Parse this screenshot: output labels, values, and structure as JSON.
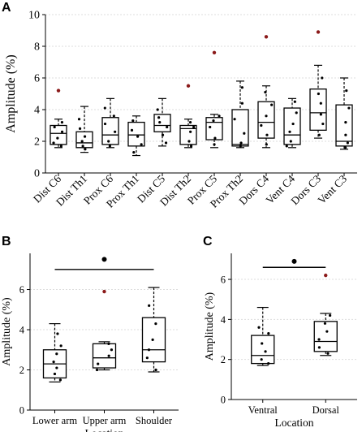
{
  "chart_data": [
    {
      "type": "box",
      "panel": "A",
      "ylabel": "Amplitude (%)",
      "xlabel": "",
      "ylim": [
        0,
        10
      ],
      "yticks": [
        0,
        2,
        4,
        6,
        8,
        10
      ],
      "grid": true,
      "categories": [
        "Dist C6",
        "Dist Th1",
        "Prox C6",
        "Prox Th1",
        "Dist C5",
        "Dist Th2",
        "Prox C5",
        "Prox Th2",
        "Dors C4",
        "Vent C4",
        "Dors C3",
        "Vent C3"
      ],
      "boxes": [
        {
          "min": 1.6,
          "q1": 1.8,
          "median": 2.5,
          "q3": 3.0,
          "max": 3.4,
          "points": [
            1.7,
            1.9,
            2.2,
            2.6,
            2.9,
            3.2
          ],
          "outliers": [
            5.2
          ]
        },
        {
          "min": 1.3,
          "q1": 1.6,
          "median": 1.9,
          "q3": 2.6,
          "max": 4.2,
          "points": [
            1.5,
            1.7,
            2.0,
            2.3,
            2.8,
            3.4
          ],
          "outliers": []
        },
        {
          "min": 1.6,
          "q1": 1.8,
          "median": 2.4,
          "q3": 3.5,
          "max": 4.7,
          "points": [
            1.7,
            2.0,
            2.6,
            3.1,
            3.6,
            4.1
          ],
          "outliers": []
        },
        {
          "min": 1.1,
          "q1": 1.7,
          "median": 2.4,
          "q3": 3.2,
          "max": 3.6,
          "points": [
            1.3,
            1.8,
            2.3,
            2.7,
            3.3
          ],
          "outliers": []
        },
        {
          "min": 1.7,
          "q1": 2.6,
          "median": 3.0,
          "q3": 3.7,
          "max": 4.7,
          "points": [
            1.9,
            2.4,
            2.9,
            3.2,
            3.5,
            4.0
          ],
          "outliers": []
        },
        {
          "min": 1.6,
          "q1": 1.8,
          "median": 2.8,
          "q3": 3.0,
          "max": 3.4,
          "points": [
            1.7,
            2.0,
            2.6,
            2.9,
            3.2
          ],
          "outliers": [
            5.5
          ]
        },
        {
          "min": 1.6,
          "q1": 2.1,
          "median": 3.2,
          "q3": 3.5,
          "max": 3.7,
          "points": [
            1.8,
            2.2,
            2.9,
            3.3,
            3.6
          ],
          "outliers": [
            7.6
          ]
        },
        {
          "min": 1.6,
          "q1": 1.7,
          "median": 1.8,
          "q3": 4.0,
          "max": 5.8,
          "points": [
            1.7,
            1.9,
            2.5,
            3.4,
            4.4,
            5.4
          ],
          "outliers": []
        },
        {
          "min": 1.6,
          "q1": 2.2,
          "median": 3.2,
          "q3": 4.5,
          "max": 5.5,
          "points": [
            1.8,
            2.4,
            3.0,
            3.6,
            4.3,
            5.1
          ],
          "outliers": [
            8.6
          ]
        },
        {
          "min": 1.6,
          "q1": 1.8,
          "median": 2.4,
          "q3": 4.1,
          "max": 4.7,
          "points": [
            1.7,
            2.0,
            2.6,
            3.1,
            3.8,
            4.5
          ],
          "outliers": []
        },
        {
          "min": 2.2,
          "q1": 2.7,
          "median": 3.8,
          "q3": 5.3,
          "max": 6.8,
          "points": [
            2.4,
            3.1,
            3.7,
            4.4,
            5.0,
            6.0
          ],
          "outliers": [
            8.9
          ]
        },
        {
          "min": 1.5,
          "q1": 1.7,
          "median": 2.0,
          "q3": 4.3,
          "max": 6.0,
          "points": [
            1.6,
            1.9,
            2.4,
            3.2,
            4.1,
            5.2
          ],
          "outliers": []
        }
      ]
    },
    {
      "type": "box",
      "panel": "B",
      "ylabel": "Amplitude (%)",
      "xlabel": "Location",
      "ylim": [
        0,
        7.8
      ],
      "yticks": [
        0,
        2,
        4,
        6
      ],
      "grid": true,
      "categories": [
        "Lower arm",
        "Upper arm",
        "Shoulder"
      ],
      "boxes": [
        {
          "min": 1.4,
          "q1": 1.6,
          "median": 2.3,
          "q3": 3.0,
          "max": 4.3,
          "points": [
            1.5,
            1.8,
            2.1,
            2.4,
            2.8,
            3.2,
            3.8
          ],
          "outliers": []
        },
        {
          "min": 2.0,
          "q1": 2.1,
          "median": 2.6,
          "q3": 3.3,
          "max": 3.4,
          "points": [
            2.0,
            2.3,
            2.7,
            3.0,
            3.3
          ],
          "outliers": [
            5.9
          ]
        },
        {
          "min": 1.9,
          "q1": 2.4,
          "median": 3.0,
          "q3": 4.6,
          "max": 6.1,
          "points": [
            2.0,
            2.6,
            3.0,
            3.5,
            4.3,
            5.2
          ],
          "outliers": []
        }
      ],
      "significance": {
        "from": 0,
        "to": 2,
        "y": 7.0,
        "marker_y": 7.5
      }
    },
    {
      "type": "box",
      "panel": "C",
      "ylabel": "Amplitude (%)",
      "xlabel": "Location",
      "ylim": [
        0,
        7.3
      ],
      "yticks": [
        0,
        2,
        4,
        6
      ],
      "grid": true,
      "categories": [
        "Ventral",
        "Dorsal"
      ],
      "boxes": [
        {
          "min": 1.7,
          "q1": 1.8,
          "median": 2.2,
          "q3": 3.2,
          "max": 4.6,
          "points": [
            1.8,
            2.0,
            2.4,
            2.8,
            3.3,
            3.6
          ],
          "outliers": []
        },
        {
          "min": 2.2,
          "q1": 2.4,
          "median": 2.9,
          "q3": 3.9,
          "max": 4.3,
          "points": [
            2.3,
            2.6,
            3.0,
            3.4,
            3.8,
            4.2
          ],
          "outliers": [
            6.2
          ]
        }
      ],
      "significance": {
        "from": 0,
        "to": 1,
        "y": 6.6,
        "marker_y": 6.9
      }
    }
  ],
  "panel_labels": [
    "A",
    "B",
    "C"
  ]
}
